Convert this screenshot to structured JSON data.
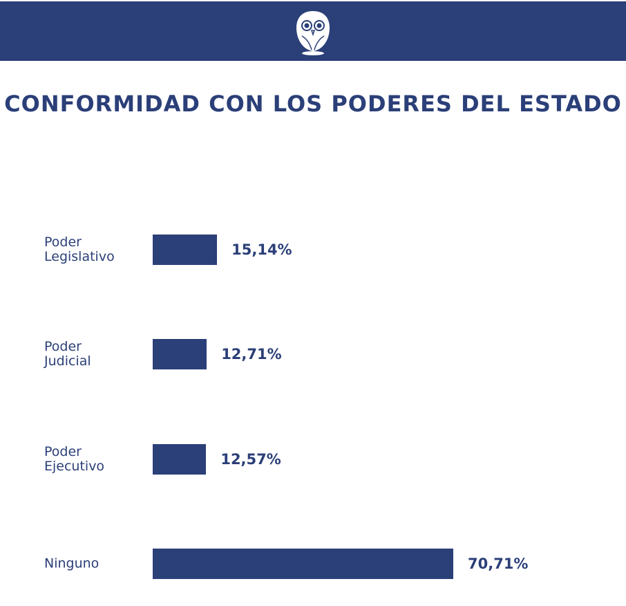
{
  "header": {
    "logo": "owl-logo"
  },
  "colors": {
    "brand": "#2b3f78"
  },
  "chart_data": {
    "type": "bar",
    "orientation": "horizontal",
    "title": "CONFORMIDAD CON LOS PODERES DEL ESTADO",
    "categories": [
      "Poder Legislativo",
      "Poder Judicial",
      "Poder Ejecutivo",
      "Ninguno"
    ],
    "values": [
      15.14,
      12.71,
      12.57,
      70.71
    ],
    "labels": [
      "15,14%",
      "12,71%",
      "12,57%",
      "70,71%"
    ],
    "unit": "%",
    "grid": false
  }
}
